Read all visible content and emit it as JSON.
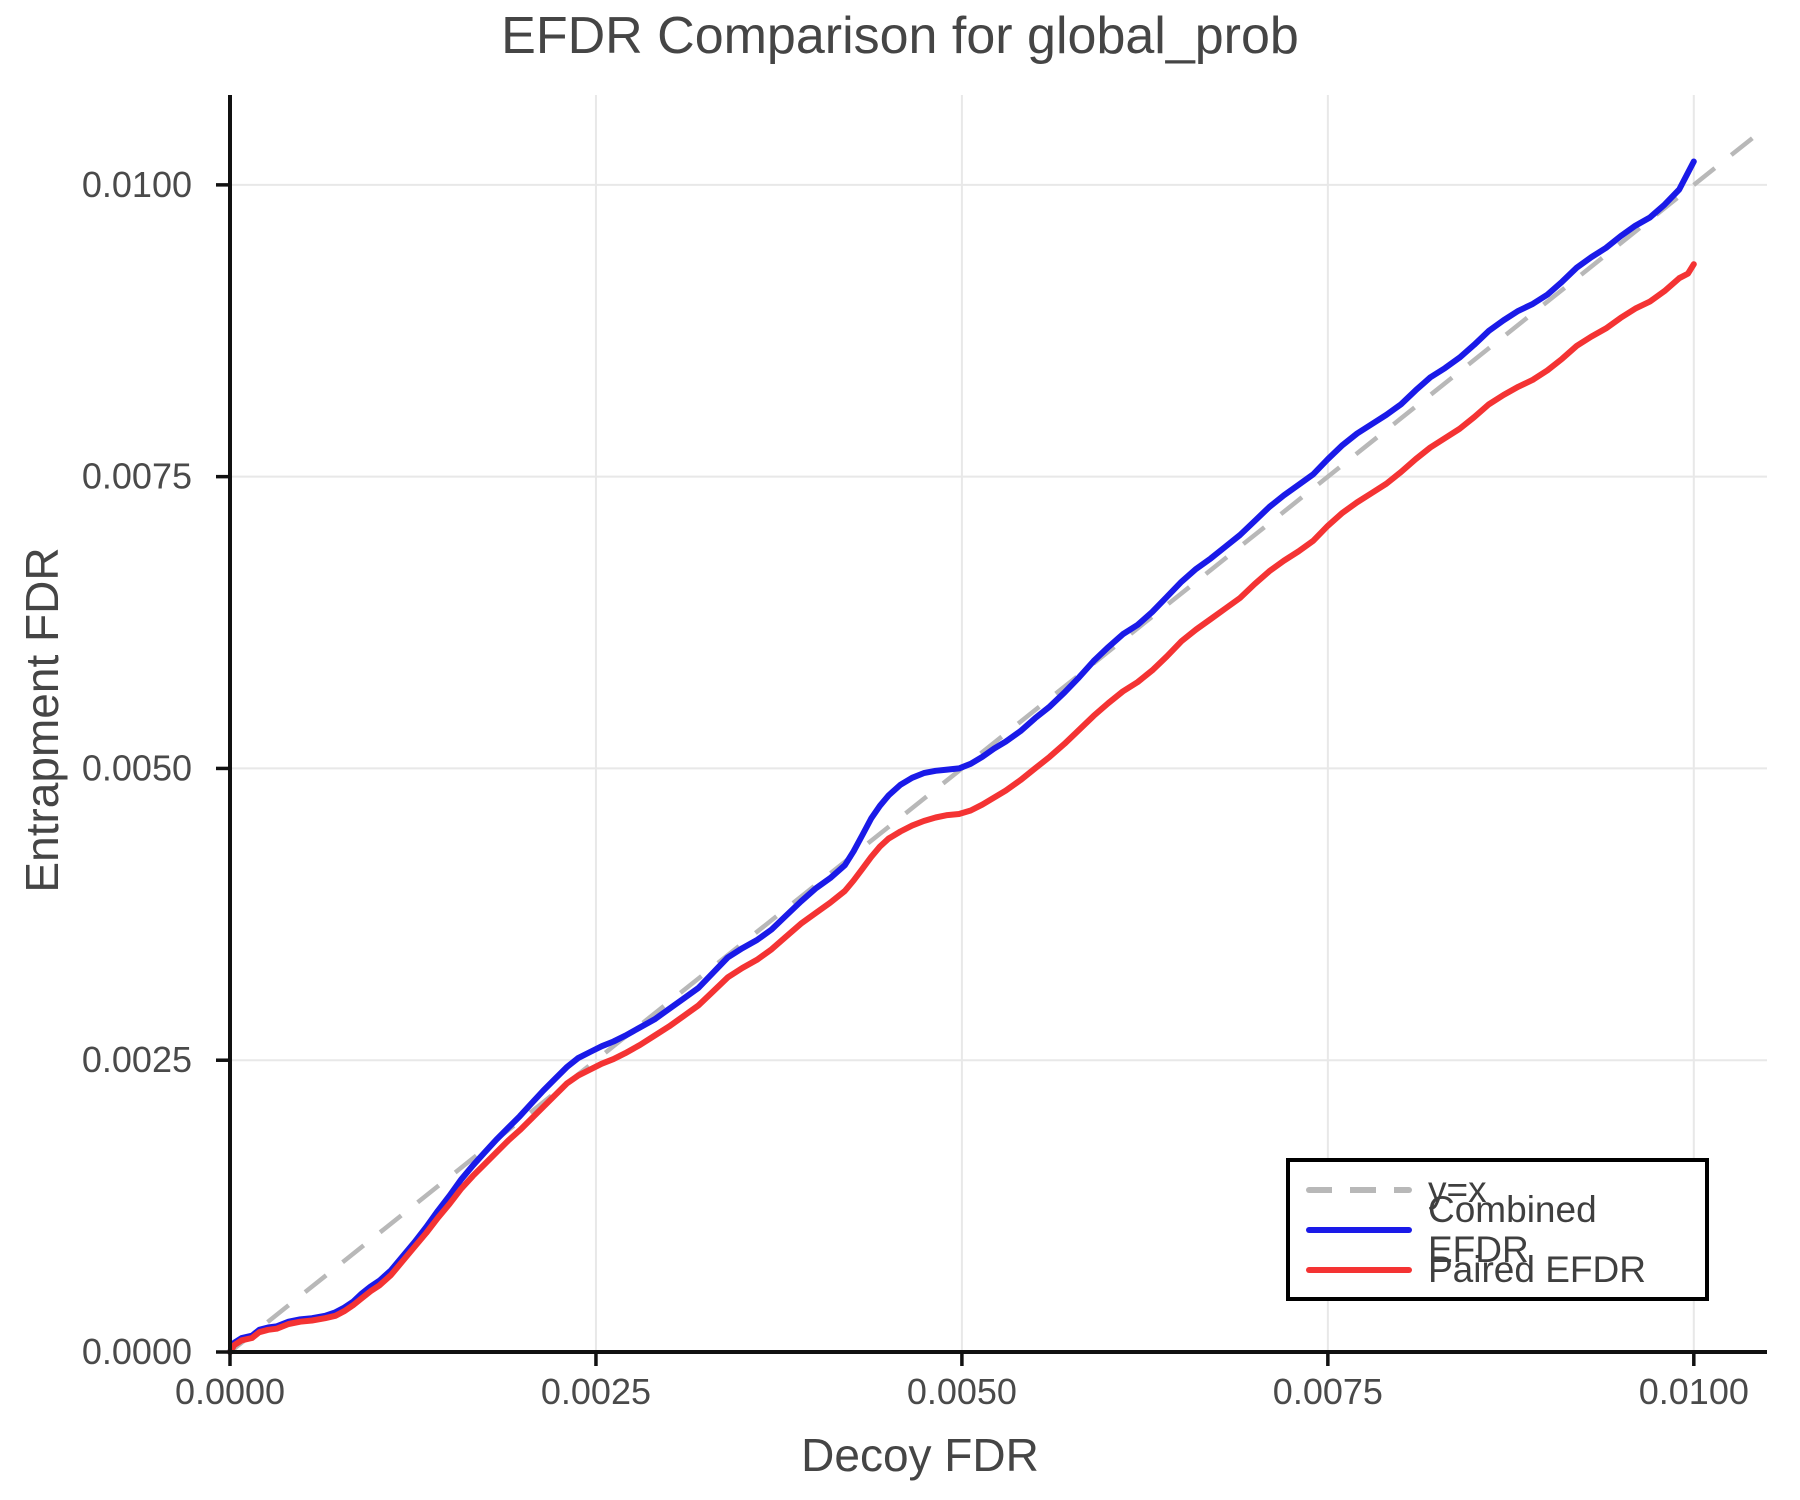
{
  "page": {
    "title": "EFDR Comparison for global_prob"
  },
  "chart_data": {
    "type": "line",
    "title": "EFDR Comparison for global_prob",
    "xlabel": "Decoy FDR",
    "ylabel": "Entrapment FDR",
    "xlim": [
      0,
      0.0105
    ],
    "ylim": [
      0,
      0.01077
    ],
    "grid": true,
    "background": "#ffffff",
    "colors": {
      "grid": "#e8e8e8",
      "spine": "#111111",
      "tick_label": "#4a4a4a",
      "title_text": "#454545",
      "reference": "#b8b8b8",
      "combined": "#1a1ae8",
      "paired": "#f43333"
    },
    "x_ticks": {
      "values": [
        0,
        0.0025,
        0.005,
        0.0075,
        0.01
      ],
      "labels": [
        "0.0000",
        "0.0025",
        "0.0050",
        "0.0075",
        "0.0100"
      ]
    },
    "y_ticks": {
      "values": [
        0,
        0.0025,
        0.005,
        0.0075,
        0.01
      ],
      "labels": [
        "0.0000",
        "0.0025",
        "0.0050",
        "0.0075",
        "0.0100"
      ]
    },
    "reference_line": {
      "label": "y=x",
      "from": [
        0,
        0
      ],
      "to": [
        0.0105,
        0.0105
      ],
      "color": "#b8b8b8",
      "dashed": true
    },
    "legend": {
      "position": "bottom-right",
      "entries": [
        {
          "label": "y=x",
          "color": "#b8b8b8",
          "dashed": true
        },
        {
          "label": "Combined EFDR",
          "color": "#1a1ae8",
          "dashed": false
        },
        {
          "label": "Paired EFDR",
          "color": "#f43333",
          "dashed": false
        }
      ]
    },
    "value_scale": 0.0001,
    "series": [
      {
        "name": "Combined EFDR",
        "color": "#1a1ae8",
        "points": [
          [
            0,
            0
          ],
          [
            0.3,
            0.8
          ],
          [
            0.8,
            1.2
          ],
          [
            1.5,
            1.4
          ],
          [
            2,
            1.9
          ],
          [
            2.6,
            2.1
          ],
          [
            3.2,
            2.2
          ],
          [
            4,
            2.6
          ],
          [
            4.8,
            2.8
          ],
          [
            5.6,
            2.9
          ],
          [
            6.5,
            3.1
          ],
          [
            7.2,
            3.4
          ],
          [
            7.8,
            3.8
          ],
          [
            8.4,
            4.3
          ],
          [
            9,
            5.0
          ],
          [
            9.6,
            5.6
          ],
          [
            10.2,
            6.1
          ],
          [
            11,
            7.0
          ],
          [
            11.8,
            8.2
          ],
          [
            12.6,
            9.4
          ],
          [
            13.4,
            10.7
          ],
          [
            14.2,
            12.1
          ],
          [
            15,
            13.4
          ],
          [
            15.8,
            14.8
          ],
          [
            16.6,
            16.0
          ],
          [
            17.4,
            17.1
          ],
          [
            18.2,
            18.2
          ],
          [
            19,
            19.2
          ],
          [
            19.8,
            20.2
          ],
          [
            20.6,
            21.3
          ],
          [
            21.4,
            22.4
          ],
          [
            22.2,
            23.4
          ],
          [
            23,
            24.4
          ],
          [
            23.8,
            25.2
          ],
          [
            24.6,
            25.7
          ],
          [
            25.4,
            26.2
          ],
          [
            26.2,
            26.6
          ],
          [
            27,
            27.1
          ],
          [
            28,
            27.8
          ],
          [
            29,
            28.5
          ],
          [
            30,
            29.4
          ],
          [
            31,
            30.3
          ],
          [
            32,
            31.2
          ],
          [
            33,
            32.5
          ],
          [
            34,
            33.8
          ],
          [
            35,
            34.6
          ],
          [
            36,
            35.3
          ],
          [
            37,
            36.2
          ],
          [
            38,
            37.4
          ],
          [
            39,
            38.6
          ],
          [
            40,
            39.7
          ],
          [
            41,
            40.6
          ],
          [
            42,
            41.7
          ],
          [
            42.6,
            42.9
          ],
          [
            43.2,
            44.3
          ],
          [
            43.8,
            45.7
          ],
          [
            44.4,
            46.8
          ],
          [
            45,
            47.7
          ],
          [
            45.8,
            48.6
          ],
          [
            46.6,
            49.2
          ],
          [
            47.4,
            49.6
          ],
          [
            48.2,
            49.8
          ],
          [
            49,
            49.9
          ],
          [
            49.8,
            50.0
          ],
          [
            50.6,
            50.4
          ],
          [
            51.4,
            51.0
          ],
          [
            52.2,
            51.7
          ],
          [
            53,
            52.3
          ],
          [
            54,
            53.2
          ],
          [
            55,
            54.3
          ],
          [
            56,
            55.3
          ],
          [
            57,
            56.5
          ],
          [
            58,
            57.8
          ],
          [
            59,
            59.2
          ],
          [
            60,
            60.4
          ],
          [
            61,
            61.5
          ],
          [
            62,
            62.3
          ],
          [
            63,
            63.4
          ],
          [
            64,
            64.7
          ],
          [
            65,
            66.0
          ],
          [
            66,
            67.1
          ],
          [
            67,
            68.0
          ],
          [
            68,
            69.0
          ],
          [
            69,
            70.0
          ],
          [
            70,
            71.2
          ],
          [
            71,
            72.4
          ],
          [
            72,
            73.4
          ],
          [
            73,
            74.3
          ],
          [
            74,
            75.2
          ],
          [
            75,
            76.5
          ],
          [
            76,
            77.7
          ],
          [
            77,
            78.7
          ],
          [
            78,
            79.5
          ],
          [
            79,
            80.3
          ],
          [
            80,
            81.2
          ],
          [
            81,
            82.4
          ],
          [
            82,
            83.5
          ],
          [
            83,
            84.3
          ],
          [
            84,
            85.2
          ],
          [
            85,
            86.3
          ],
          [
            86,
            87.5
          ],
          [
            87,
            88.4
          ],
          [
            88,
            89.2
          ],
          [
            89,
            89.8
          ],
          [
            90,
            90.6
          ],
          [
            91,
            91.7
          ],
          [
            92,
            92.9
          ],
          [
            93,
            93.8
          ],
          [
            94,
            94.6
          ],
          [
            95,
            95.6
          ],
          [
            96,
            96.5
          ],
          [
            97,
            97.2
          ],
          [
            98,
            98.3
          ],
          [
            99,
            99.6
          ],
          [
            99.5,
            100.8
          ],
          [
            100,
            102.0
          ]
        ]
      },
      {
        "name": "Paired EFDR",
        "color": "#f43333",
        "points": [
          [
            0,
            0
          ],
          [
            0.3,
            0.6
          ],
          [
            0.8,
            1.0
          ],
          [
            1.5,
            1.2
          ],
          [
            2,
            1.7
          ],
          [
            2.6,
            1.9
          ],
          [
            3.2,
            2.0
          ],
          [
            4,
            2.4
          ],
          [
            4.8,
            2.6
          ],
          [
            5.6,
            2.7
          ],
          [
            6.5,
            2.9
          ],
          [
            7.2,
            3.1
          ],
          [
            7.8,
            3.5
          ],
          [
            8.4,
            4.0
          ],
          [
            9,
            4.6
          ],
          [
            9.6,
            5.2
          ],
          [
            10.2,
            5.7
          ],
          [
            11,
            6.6
          ],
          [
            11.8,
            7.8
          ],
          [
            12.6,
            9.0
          ],
          [
            13.4,
            10.2
          ],
          [
            14.2,
            11.5
          ],
          [
            15,
            12.7
          ],
          [
            15.8,
            14.0
          ],
          [
            16.6,
            15.1
          ],
          [
            17.4,
            16.1
          ],
          [
            18.2,
            17.1
          ],
          [
            19,
            18.1
          ],
          [
            19.8,
            19.0
          ],
          [
            20.6,
            20.0
          ],
          [
            21.4,
            21.0
          ],
          [
            22.2,
            22.0
          ],
          [
            23,
            23.0
          ],
          [
            23.8,
            23.7
          ],
          [
            24.6,
            24.2
          ],
          [
            25.4,
            24.7
          ],
          [
            26.2,
            25.1
          ],
          [
            27,
            25.6
          ],
          [
            28,
            26.3
          ],
          [
            29,
            27.1
          ],
          [
            30,
            27.9
          ],
          [
            31,
            28.8
          ],
          [
            32,
            29.7
          ],
          [
            33,
            30.9
          ],
          [
            34,
            32.1
          ],
          [
            35,
            32.9
          ],
          [
            36,
            33.6
          ],
          [
            37,
            34.5
          ],
          [
            38,
            35.6
          ],
          [
            39,
            36.7
          ],
          [
            40,
            37.6
          ],
          [
            41,
            38.5
          ],
          [
            42,
            39.5
          ],
          [
            42.6,
            40.4
          ],
          [
            43.2,
            41.4
          ],
          [
            43.8,
            42.4
          ],
          [
            44.4,
            43.3
          ],
          [
            45,
            44.0
          ],
          [
            45.8,
            44.6
          ],
          [
            46.6,
            45.1
          ],
          [
            47.4,
            45.5
          ],
          [
            48.2,
            45.8
          ],
          [
            49,
            46.0
          ],
          [
            49.8,
            46.1
          ],
          [
            50.6,
            46.4
          ],
          [
            51.4,
            46.9
          ],
          [
            52.2,
            47.5
          ],
          [
            53,
            48.1
          ],
          [
            54,
            49.0
          ],
          [
            55,
            50.0
          ],
          [
            56,
            51.0
          ],
          [
            57,
            52.1
          ],
          [
            58,
            53.3
          ],
          [
            59,
            54.5
          ],
          [
            60,
            55.6
          ],
          [
            61,
            56.6
          ],
          [
            62,
            57.4
          ],
          [
            63,
            58.4
          ],
          [
            64,
            59.6
          ],
          [
            65,
            60.9
          ],
          [
            66,
            61.9
          ],
          [
            67,
            62.8
          ],
          [
            68,
            63.7
          ],
          [
            69,
            64.6
          ],
          [
            70,
            65.8
          ],
          [
            71,
            66.9
          ],
          [
            72,
            67.8
          ],
          [
            73,
            68.6
          ],
          [
            74,
            69.5
          ],
          [
            75,
            70.8
          ],
          [
            76,
            71.9
          ],
          [
            77,
            72.8
          ],
          [
            78,
            73.6
          ],
          [
            79,
            74.4
          ],
          [
            80,
            75.4
          ],
          [
            81,
            76.5
          ],
          [
            82,
            77.5
          ],
          [
            83,
            78.3
          ],
          [
            84,
            79.1
          ],
          [
            85,
            80.1
          ],
          [
            86,
            81.2
          ],
          [
            87,
            82.0
          ],
          [
            88,
            82.7
          ],
          [
            89,
            83.3
          ],
          [
            90,
            84.1
          ],
          [
            91,
            85.1
          ],
          [
            92,
            86.2
          ],
          [
            93,
            87.0
          ],
          [
            94,
            87.7
          ],
          [
            95,
            88.6
          ],
          [
            96,
            89.4
          ],
          [
            97,
            90.0
          ],
          [
            98,
            90.9
          ],
          [
            99,
            92.0
          ],
          [
            99.6,
            92.4
          ],
          [
            100,
            93.2
          ]
        ]
      }
    ]
  }
}
